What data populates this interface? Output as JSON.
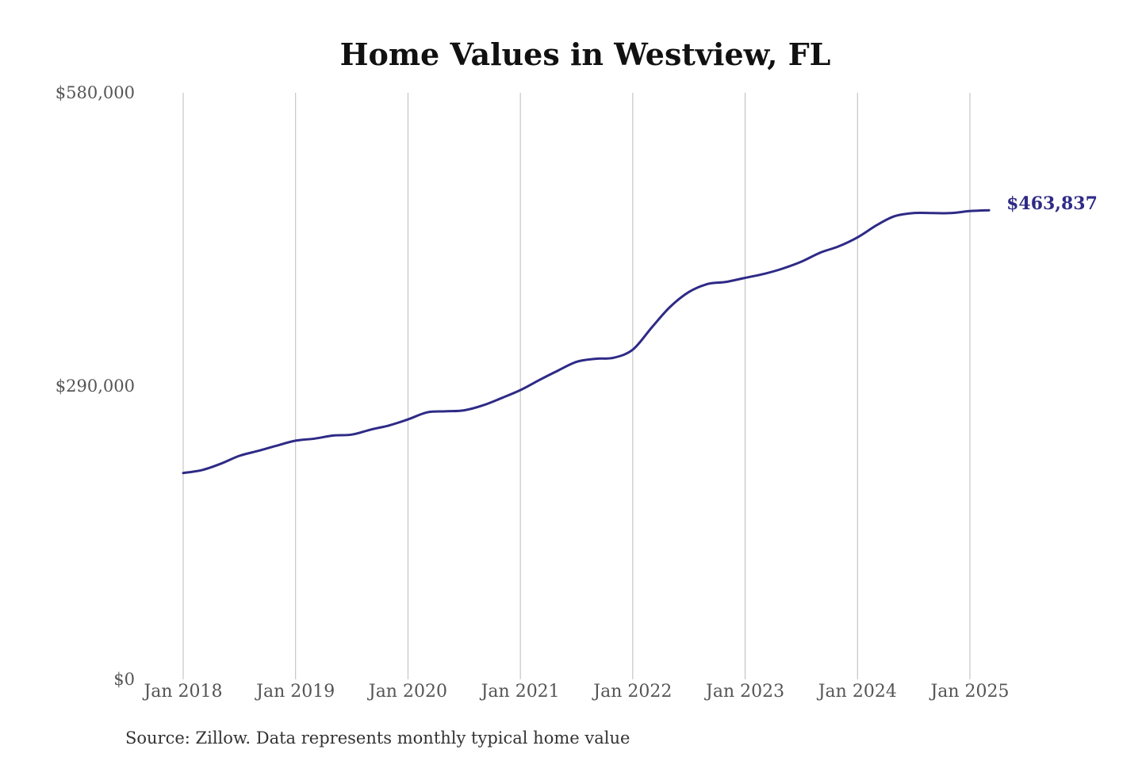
{
  "chart_data": {
    "type": "line",
    "title": "Home Values in Westview, FL",
    "source": "Source: Zillow. Data represents monthly typical home value",
    "ylim": [
      0,
      580000
    ],
    "y_ticks": [
      {
        "value": 580000,
        "label": "$580,000"
      },
      {
        "value": 290000,
        "label": "$290,000"
      },
      {
        "value": 0,
        "label": "$0"
      }
    ],
    "x_ticks": [
      {
        "value": 2018.0,
        "label": "Jan 2018"
      },
      {
        "value": 2019.0,
        "label": "Jan 2019"
      },
      {
        "value": 2020.0,
        "label": "Jan 2020"
      },
      {
        "value": 2021.0,
        "label": "Jan 2021"
      },
      {
        "value": 2022.0,
        "label": "Jan 2022"
      },
      {
        "value": 2023.0,
        "label": "Jan 2023"
      },
      {
        "value": 2024.0,
        "label": "Jan 2024"
      },
      {
        "value": 2025.0,
        "label": "Jan 2025"
      }
    ],
    "xlim": [
      2018.0,
      2025.25
    ],
    "grid": "vertical",
    "line_color": "#2e2a86",
    "end_label": "$463,837",
    "series": [
      {
        "points": [
          [
            2018.0,
            204000
          ],
          [
            2018.17,
            207000
          ],
          [
            2018.33,
            213000
          ],
          [
            2018.5,
            221000
          ],
          [
            2018.67,
            226000
          ],
          [
            2018.83,
            231000
          ],
          [
            2019.0,
            236000
          ],
          [
            2019.17,
            238000
          ],
          [
            2019.33,
            241000
          ],
          [
            2019.5,
            242000
          ],
          [
            2019.67,
            247000
          ],
          [
            2019.83,
            251000
          ],
          [
            2020.0,
            257000
          ],
          [
            2020.17,
            264000
          ],
          [
            2020.33,
            265000
          ],
          [
            2020.5,
            266000
          ],
          [
            2020.67,
            271000
          ],
          [
            2020.83,
            278000
          ],
          [
            2021.0,
            286000
          ],
          [
            2021.17,
            296000
          ],
          [
            2021.33,
            305000
          ],
          [
            2021.5,
            314000
          ],
          [
            2021.67,
            317000
          ],
          [
            2021.83,
            318000
          ],
          [
            2022.0,
            326000
          ],
          [
            2022.17,
            348000
          ],
          [
            2022.33,
            368000
          ],
          [
            2022.5,
            383000
          ],
          [
            2022.67,
            391000
          ],
          [
            2022.83,
            393000
          ],
          [
            2023.0,
            397000
          ],
          [
            2023.17,
            401000
          ],
          [
            2023.33,
            406000
          ],
          [
            2023.5,
            413000
          ],
          [
            2023.67,
            422000
          ],
          [
            2023.83,
            428000
          ],
          [
            2024.0,
            437000
          ],
          [
            2024.17,
            449000
          ],
          [
            2024.33,
            458000
          ],
          [
            2024.5,
            461000
          ],
          [
            2024.67,
            461000
          ],
          [
            2024.83,
            461000
          ],
          [
            2025.0,
            463000
          ],
          [
            2025.17,
            463837
          ]
        ]
      }
    ]
  }
}
